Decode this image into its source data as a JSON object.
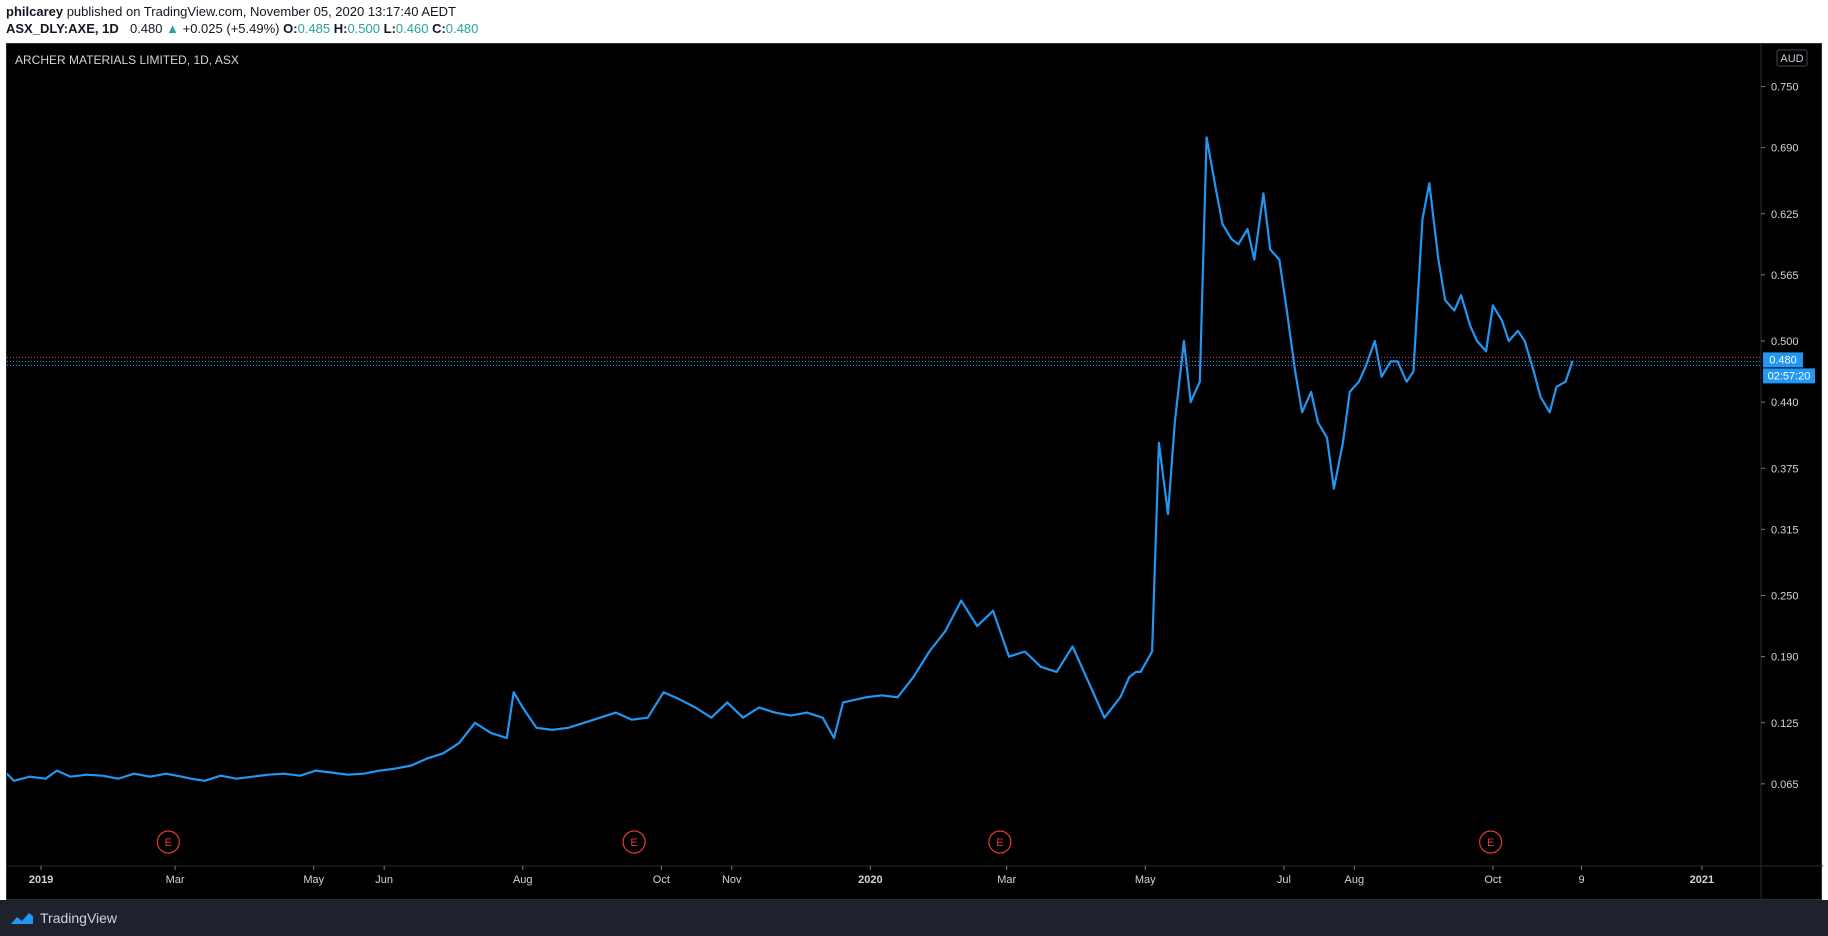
{
  "header": {
    "user": "philcarey",
    "published": " published on TradingView.com, November 05, 2020 13:17:40 AEDT",
    "symbol": "ASX_DLY:AXE, 1D",
    "last": "0.480",
    "arrow": "▲",
    "change": "+0.025 (+5.49%)",
    "o_label": "O:",
    "o_val": "0.485",
    "h_label": "H:",
    "h_val": "0.500",
    "l_label": "L:",
    "l_val": "0.460",
    "c_label": "C:",
    "c_val": "0.480"
  },
  "footer": {
    "brand": "TradingView"
  },
  "colors": {
    "line": "#2196f3",
    "price_tag_bg": "#2196f3",
    "earnings": "#e53935",
    "grid_text": "#d1d4dc",
    "red_line": "#e53935"
  },
  "chart_data": {
    "type": "line",
    "title": "ARCHER MATERIALS LIMITED, 1D, ASX",
    "currency": "AUD",
    "ylim": [
      0,
      0.78
    ],
    "y_ticks": [
      "0.750",
      "0.690",
      "0.625",
      "0.565",
      "0.500",
      "0.440",
      "0.375",
      "0.315",
      "0.250",
      "0.190",
      "0.125",
      "0.065"
    ],
    "y_tick_values": [
      0.75,
      0.69,
      0.625,
      0.565,
      0.5,
      0.44,
      0.375,
      0.315,
      0.25,
      0.19,
      0.125,
      0.065
    ],
    "x_ticks": [
      "2019",
      "Mar",
      "May",
      "Jun",
      "Aug",
      "Oct",
      "Nov",
      "2020",
      "Mar",
      "May",
      "Jul",
      "Aug",
      "Oct",
      "9",
      "2021"
    ],
    "x_tick_dates": [
      "2019-01-01",
      "2019-03-01",
      "2019-05-01",
      "2019-06-01",
      "2019-08-01",
      "2019-10-01",
      "2019-11-01",
      "2020-01-01",
      "2020-03-01",
      "2020-05-01",
      "2020-07-01",
      "2020-08-01",
      "2020-10-01",
      "2020-11-09",
      "2021-01-01"
    ],
    "x_start": "2018-12-17",
    "x_end": "2021-01-27",
    "last_price": "0.480",
    "last_value": 0.48,
    "countdown": "02:57:20",
    "earnings_label": "E",
    "earnings_dates": [
      "2019-02-26",
      "2019-09-19",
      "2020-02-27",
      "2020-09-30"
    ],
    "series": [
      {
        "dates": [
          "2018-12-17",
          "2018-12-20",
          "2018-12-27",
          "2019-01-03",
          "2019-01-08",
          "2019-01-14",
          "2019-01-21",
          "2019-01-28",
          "2019-02-04",
          "2019-02-11",
          "2019-02-18",
          "2019-02-25",
          "2019-03-04",
          "2019-03-08",
          "2019-03-14",
          "2019-03-21",
          "2019-03-28",
          "2019-04-04",
          "2019-04-11",
          "2019-04-18",
          "2019-04-25",
          "2019-05-02",
          "2019-05-09",
          "2019-05-16",
          "2019-05-23",
          "2019-05-30",
          "2019-06-06",
          "2019-06-13",
          "2019-06-20",
          "2019-06-27",
          "2019-07-04",
          "2019-07-11",
          "2019-07-18",
          "2019-07-25",
          "2019-07-28",
          "2019-08-01",
          "2019-08-07",
          "2019-08-14",
          "2019-08-21",
          "2019-08-28",
          "2019-09-04",
          "2019-09-11",
          "2019-09-18",
          "2019-09-25",
          "2019-10-02",
          "2019-10-09",
          "2019-10-16",
          "2019-10-23",
          "2019-10-30",
          "2019-11-06",
          "2019-11-13",
          "2019-11-20",
          "2019-11-27",
          "2019-12-04",
          "2019-12-11",
          "2019-12-16",
          "2019-12-20",
          "2019-12-30",
          "2020-01-06",
          "2020-01-13",
          "2020-01-20",
          "2020-01-27",
          "2020-02-03",
          "2020-02-10",
          "2020-02-17",
          "2020-02-24",
          "2020-03-02",
          "2020-03-09",
          "2020-03-16",
          "2020-03-23",
          "2020-03-30",
          "2020-04-06",
          "2020-04-13",
          "2020-04-20",
          "2020-04-24",
          "2020-04-27",
          "2020-04-29",
          "2020-05-04",
          "2020-05-07",
          "2020-05-11",
          "2020-05-14",
          "2020-05-18",
          "2020-05-21",
          "2020-05-25",
          "2020-05-28",
          "2020-06-01",
          "2020-06-04",
          "2020-06-08",
          "2020-06-11",
          "2020-06-15",
          "2020-06-18",
          "2020-06-22",
          "2020-06-25",
          "2020-06-29",
          "2020-07-02",
          "2020-07-06",
          "2020-07-09",
          "2020-07-13",
          "2020-07-16",
          "2020-07-20",
          "2020-07-23",
          "2020-07-27",
          "2020-07-30",
          "2020-08-03",
          "2020-08-06",
          "2020-08-10",
          "2020-08-13",
          "2020-08-17",
          "2020-08-20",
          "2020-08-24",
          "2020-08-27",
          "2020-08-31",
          "2020-09-03",
          "2020-09-07",
          "2020-09-10",
          "2020-09-14",
          "2020-09-17",
          "2020-09-21",
          "2020-09-24",
          "2020-09-28",
          "2020-10-01",
          "2020-10-05",
          "2020-10-08",
          "2020-10-12",
          "2020-10-15",
          "2020-10-19",
          "2020-10-22",
          "2020-10-26",
          "2020-10-29",
          "2020-11-02",
          "2020-11-05"
        ],
        "values": [
          0.075,
          0.068,
          0.072,
          0.07,
          0.078,
          0.072,
          0.074,
          0.073,
          0.07,
          0.075,
          0.072,
          0.075,
          0.072,
          0.07,
          0.068,
          0.073,
          0.07,
          0.072,
          0.074,
          0.075,
          0.073,
          0.078,
          0.076,
          0.074,
          0.075,
          0.078,
          0.08,
          0.083,
          0.09,
          0.095,
          0.105,
          0.125,
          0.115,
          0.11,
          0.155,
          0.14,
          0.12,
          0.118,
          0.12,
          0.125,
          0.13,
          0.135,
          0.128,
          0.13,
          0.155,
          0.148,
          0.14,
          0.13,
          0.145,
          0.13,
          0.14,
          0.135,
          0.132,
          0.135,
          0.13,
          0.11,
          0.145,
          0.15,
          0.152,
          0.15,
          0.17,
          0.195,
          0.215,
          0.245,
          0.22,
          0.235,
          0.19,
          0.195,
          0.18,
          0.175,
          0.2,
          0.165,
          0.13,
          0.15,
          0.17,
          0.175,
          0.175,
          0.195,
          0.4,
          0.33,
          0.42,
          0.5,
          0.44,
          0.46,
          0.7,
          0.65,
          0.615,
          0.6,
          0.595,
          0.61,
          0.58,
          0.645,
          0.59,
          0.58,
          0.535,
          0.47,
          0.43,
          0.45,
          0.42,
          0.405,
          0.355,
          0.4,
          0.45,
          0.46,
          0.475,
          0.5,
          0.465,
          0.48,
          0.48,
          0.46,
          0.47,
          0.62,
          0.655,
          0.58,
          0.54,
          0.53,
          0.545,
          0.515,
          0.5,
          0.49,
          0.535,
          0.52,
          0.5,
          0.51,
          0.5,
          0.47,
          0.445,
          0.43,
          0.455,
          0.46,
          0.48
        ]
      }
    ]
  }
}
